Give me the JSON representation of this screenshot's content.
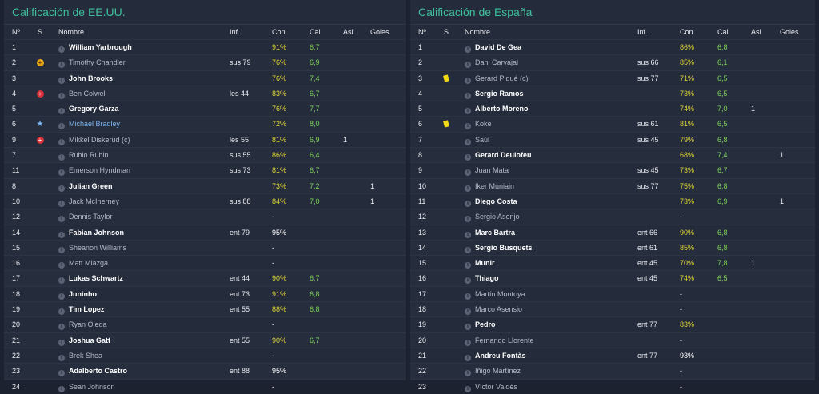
{
  "columns": {
    "num": "Nº",
    "s": "S",
    "name": "Nombre",
    "inf": "Inf.",
    "con": "Con",
    "cal": "Cal",
    "asi": "Asi",
    "goles": "Goles"
  },
  "usa": {
    "title": "Calificación de EE.UU.",
    "rows": [
      {
        "num": "1",
        "icon": "",
        "name": "William Yarbrough",
        "style": "bold",
        "inf": "",
        "con": "91%",
        "con_color": "yellow",
        "cal": "6,7",
        "asi": "",
        "goles": ""
      },
      {
        "num": "2",
        "icon": "warning-icon",
        "name": "Timothy Chandler",
        "style": "sub",
        "inf": "sus 79",
        "con": "76%",
        "con_color": "yellow",
        "cal": "6,9",
        "asi": "",
        "goles": ""
      },
      {
        "num": "3",
        "icon": "",
        "name": "John Brooks",
        "style": "bold",
        "inf": "",
        "con": "76%",
        "con_color": "yellow",
        "cal": "7,4",
        "asi": "",
        "goles": ""
      },
      {
        "num": "4",
        "icon": "injury-icon",
        "name": "Ben Colwell",
        "style": "sub",
        "inf": "les 44",
        "con": "83%",
        "con_color": "yellow",
        "cal": "6,7",
        "asi": "",
        "goles": ""
      },
      {
        "num": "5",
        "icon": "",
        "name": "Gregory Garza",
        "style": "bold",
        "inf": "",
        "con": "76%",
        "con_color": "yellow",
        "cal": "7,7",
        "asi": "",
        "goles": ""
      },
      {
        "num": "6",
        "icon": "star-icon",
        "name": "Michael Bradley",
        "style": "cap",
        "inf": "",
        "con": "72%",
        "con_color": "yellow",
        "cal": "8,0",
        "asi": "",
        "goles": ""
      },
      {
        "num": "9",
        "icon": "injury-icon",
        "name": "Mikkel Diskerud (c)",
        "style": "sub",
        "inf": "les 55",
        "con": "81%",
        "con_color": "yellow",
        "cal": "6,9",
        "asi": "1",
        "goles": ""
      },
      {
        "num": "7",
        "icon": "",
        "name": "Rubio Rubin",
        "style": "sub",
        "inf": "sus 55",
        "con": "86%",
        "con_color": "yellow",
        "cal": "6,4",
        "asi": "",
        "goles": ""
      },
      {
        "num": "11",
        "icon": "",
        "name": "Emerson Hyndman",
        "style": "sub",
        "inf": "sus 73",
        "con": "81%",
        "con_color": "yellow",
        "cal": "6,7",
        "asi": "",
        "goles": ""
      },
      {
        "num": "8",
        "icon": "",
        "name": "Julian Green",
        "style": "bold",
        "inf": "",
        "con": "73%",
        "con_color": "yellow",
        "cal": "7,2",
        "asi": "",
        "goles": "1"
      },
      {
        "num": "10",
        "icon": "",
        "name": "Jack McInerney",
        "style": "sub",
        "inf": "sus 88",
        "con": "84%",
        "con_color": "yellow",
        "cal": "7,0",
        "asi": "",
        "goles": "1"
      },
      {
        "num": "12",
        "icon": "",
        "name": "Dennis Taylor",
        "style": "sub",
        "inf": "",
        "con": "-",
        "con_color": "white",
        "cal": "",
        "asi": "",
        "goles": ""
      },
      {
        "num": "14",
        "icon": "",
        "name": "Fabian Johnson",
        "style": "bold",
        "inf": "ent 79",
        "con": "95%",
        "con_color": "white",
        "cal": "",
        "asi": "",
        "goles": ""
      },
      {
        "num": "15",
        "icon": "",
        "name": "Sheanon Williams",
        "style": "sub",
        "inf": "",
        "con": "-",
        "con_color": "white",
        "cal": "",
        "asi": "",
        "goles": ""
      },
      {
        "num": "16",
        "icon": "",
        "name": "Matt Miazga",
        "style": "sub",
        "inf": "",
        "con": "-",
        "con_color": "white",
        "cal": "",
        "asi": "",
        "goles": ""
      },
      {
        "num": "17",
        "icon": "",
        "name": "Lukas Schwartz",
        "style": "bold",
        "inf": "ent 44",
        "con": "90%",
        "con_color": "yellow",
        "cal": "6,7",
        "asi": "",
        "goles": ""
      },
      {
        "num": "18",
        "icon": "",
        "name": "Juninho",
        "style": "bold",
        "inf": "ent 73",
        "con": "91%",
        "con_color": "yellow",
        "cal": "6,8",
        "asi": "",
        "goles": ""
      },
      {
        "num": "19",
        "icon": "",
        "name": "Tim Lopez",
        "style": "bold",
        "inf": "ent 55",
        "con": "88%",
        "con_color": "yellow",
        "cal": "6,8",
        "asi": "",
        "goles": ""
      },
      {
        "num": "20",
        "icon": "",
        "name": "Ryan Ojeda",
        "style": "sub",
        "inf": "",
        "con": "-",
        "con_color": "white",
        "cal": "",
        "asi": "",
        "goles": ""
      },
      {
        "num": "21",
        "icon": "",
        "name": "Joshua Gatt",
        "style": "bold",
        "inf": "ent 55",
        "con": "90%",
        "con_color": "yellow",
        "cal": "6,7",
        "asi": "",
        "goles": ""
      },
      {
        "num": "22",
        "icon": "",
        "name": "Brek Shea",
        "style": "sub",
        "inf": "",
        "con": "-",
        "con_color": "white",
        "cal": "",
        "asi": "",
        "goles": ""
      },
      {
        "num": "23",
        "icon": "",
        "name": "Adalberto Castro",
        "style": "bold",
        "inf": "ent 88",
        "con": "95%",
        "con_color": "white",
        "cal": "",
        "asi": "",
        "goles": ""
      },
      {
        "num": "24",
        "icon": "",
        "name": "Sean Johnson",
        "style": "sub",
        "inf": "",
        "con": "-",
        "con_color": "white",
        "cal": "",
        "asi": "",
        "goles": ""
      }
    ]
  },
  "spain": {
    "title": "Calificación de España",
    "rows": [
      {
        "num": "1",
        "icon": "",
        "name": "David De Gea",
        "style": "bold",
        "inf": "",
        "con": "86%",
        "con_color": "yellow",
        "cal": "6,8",
        "asi": "",
        "goles": ""
      },
      {
        "num": "2",
        "icon": "",
        "name": "Dani Carvajal",
        "style": "sub",
        "inf": "sus 66",
        "con": "85%",
        "con_color": "yellow",
        "cal": "6,1",
        "asi": "",
        "goles": ""
      },
      {
        "num": "3",
        "icon": "yellow-card-icon",
        "name": "Gerard Piqué (c)",
        "style": "sub",
        "inf": "sus 77",
        "con": "71%",
        "con_color": "yellow",
        "cal": "6,5",
        "asi": "",
        "goles": ""
      },
      {
        "num": "4",
        "icon": "",
        "name": "Sergio Ramos",
        "style": "bold",
        "inf": "",
        "con": "73%",
        "con_color": "yellow",
        "cal": "6,5",
        "asi": "",
        "goles": ""
      },
      {
        "num": "5",
        "icon": "",
        "name": "Alberto Moreno",
        "style": "bold",
        "inf": "",
        "con": "74%",
        "con_color": "yellow",
        "cal": "7,0",
        "asi": "1",
        "goles": ""
      },
      {
        "num": "6",
        "icon": "yellow-card-icon",
        "name": "Koke",
        "style": "sub",
        "inf": "sus 61",
        "con": "81%",
        "con_color": "yellow",
        "cal": "6,5",
        "asi": "",
        "goles": ""
      },
      {
        "num": "7",
        "icon": "",
        "name": "Saúl",
        "style": "sub",
        "inf": "sus 45",
        "con": "79%",
        "con_color": "yellow",
        "cal": "6,8",
        "asi": "",
        "goles": ""
      },
      {
        "num": "8",
        "icon": "",
        "name": "Gerard Deulofeu",
        "style": "bold",
        "inf": "",
        "con": "68%",
        "con_color": "yellow",
        "cal": "7,4",
        "asi": "",
        "goles": "1"
      },
      {
        "num": "9",
        "icon": "",
        "name": "Juan Mata",
        "style": "sub",
        "inf": "sus 45",
        "con": "73%",
        "con_color": "yellow",
        "cal": "6,7",
        "asi": "",
        "goles": ""
      },
      {
        "num": "10",
        "icon": "",
        "name": "Iker Muniain",
        "style": "sub",
        "inf": "sus 77",
        "con": "75%",
        "con_color": "yellow",
        "cal": "6,8",
        "asi": "",
        "goles": ""
      },
      {
        "num": "11",
        "icon": "",
        "name": "Diego Costa",
        "style": "bold",
        "inf": "",
        "con": "73%",
        "con_color": "yellow",
        "cal": "6,9",
        "asi": "",
        "goles": "1"
      },
      {
        "num": "12",
        "icon": "",
        "name": "Sergio Asenjo",
        "style": "sub",
        "inf": "",
        "con": "-",
        "con_color": "white",
        "cal": "",
        "asi": "",
        "goles": ""
      },
      {
        "num": "13",
        "icon": "",
        "name": "Marc Bartra",
        "style": "bold",
        "inf": "ent 66",
        "con": "90%",
        "con_color": "yellow",
        "cal": "6,8",
        "asi": "",
        "goles": ""
      },
      {
        "num": "14",
        "icon": "",
        "name": "Sergio Busquets",
        "style": "bold",
        "inf": "ent 61",
        "con": "85%",
        "con_color": "yellow",
        "cal": "6,8",
        "asi": "",
        "goles": ""
      },
      {
        "num": "15",
        "icon": "",
        "name": "Munir",
        "style": "bold",
        "inf": "ent 45",
        "con": "70%",
        "con_color": "yellow",
        "cal": "7,8",
        "asi": "1",
        "goles": ""
      },
      {
        "num": "16",
        "icon": "",
        "name": "Thiago",
        "style": "bold",
        "inf": "ent 45",
        "con": "74%",
        "con_color": "yellow",
        "cal": "6,5",
        "asi": "",
        "goles": ""
      },
      {
        "num": "17",
        "icon": "",
        "name": "Martín Montoya",
        "style": "sub",
        "inf": "",
        "con": "-",
        "con_color": "white",
        "cal": "",
        "asi": "",
        "goles": ""
      },
      {
        "num": "18",
        "icon": "",
        "name": "Marco Asensio",
        "style": "sub",
        "inf": "",
        "con": "-",
        "con_color": "white",
        "cal": "",
        "asi": "",
        "goles": ""
      },
      {
        "num": "19",
        "icon": "",
        "name": "Pedro",
        "style": "bold",
        "inf": "ent 77",
        "con": "83%",
        "con_color": "yellow",
        "cal": "",
        "asi": "",
        "goles": ""
      },
      {
        "num": "20",
        "icon": "",
        "name": "Fernando Llorente",
        "style": "sub",
        "inf": "",
        "con": "-",
        "con_color": "white",
        "cal": "",
        "asi": "",
        "goles": ""
      },
      {
        "num": "21",
        "icon": "",
        "name": "Andreu Fontàs",
        "style": "bold",
        "inf": "ent 77",
        "con": "93%",
        "con_color": "white",
        "cal": "",
        "asi": "",
        "goles": ""
      },
      {
        "num": "22",
        "icon": "",
        "name": "Iñigo Martínez",
        "style": "sub",
        "inf": "",
        "con": "-",
        "con_color": "white",
        "cal": "",
        "asi": "",
        "goles": ""
      },
      {
        "num": "23",
        "icon": "",
        "name": "Víctor Valdés",
        "style": "sub",
        "inf": "",
        "con": "-",
        "con_color": "white",
        "cal": "",
        "asi": "",
        "goles": ""
      }
    ]
  }
}
